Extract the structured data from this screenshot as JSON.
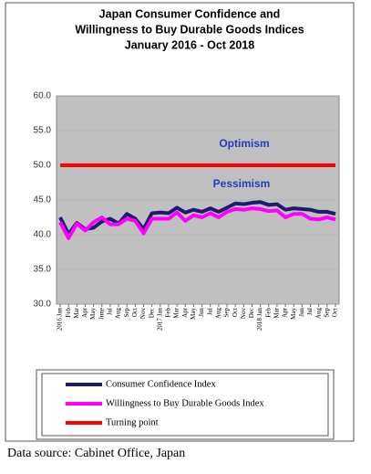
{
  "chart_data": {
    "type": "line",
    "title": [
      "Japan Consumer Confidence and",
      "Willingness to Buy Durable Goods Indices",
      "January 2016 - Oct 2018"
    ],
    "categories": [
      "2016 Jan",
      "Feb",
      "Mar",
      "Apr",
      "May",
      "June",
      "Jul",
      "Aug",
      "Sep",
      "Oct",
      "Nov",
      "Dec",
      "2017 Jan",
      "Feb",
      "Mar",
      "Apr",
      "May",
      "Jun",
      "Jul",
      "Aug",
      "Sep",
      "Oct",
      "Nov",
      "Dec",
      "2018 Jan",
      "Feb",
      "Mar",
      "Apr",
      "May",
      "Jun",
      "Jul",
      "Aug",
      "Sep",
      "Oct"
    ],
    "series": [
      {
        "name": "Consumer Confidence Index",
        "color": "#1c1c6e",
        "values": [
          42.5,
          40.1,
          41.7,
          40.8,
          41.0,
          41.9,
          42.3,
          41.6,
          43.0,
          42.3,
          40.8,
          43.1,
          43.2,
          43.1,
          43.9,
          43.2,
          43.6,
          43.3,
          43.8,
          43.3,
          43.9,
          44.5,
          44.4,
          44.6,
          44.7,
          44.3,
          44.4,
          43.6,
          43.8,
          43.7,
          43.6,
          43.3,
          43.3,
          43.0
        ]
      },
      {
        "name": "Willingness to Buy Durable Goods Index",
        "color": "#ff00ff",
        "values": [
          41.8,
          39.5,
          41.6,
          40.6,
          41.8,
          42.5,
          41.5,
          41.5,
          42.3,
          42.0,
          40.2,
          42.3,
          42.3,
          42.3,
          43.2,
          42.0,
          42.8,
          42.5,
          43.1,
          42.5,
          43.3,
          43.7,
          43.6,
          43.8,
          43.7,
          43.4,
          43.5,
          42.5,
          43.0,
          43.0,
          42.3,
          42.2,
          42.5,
          42.2
        ]
      },
      {
        "name": "Turning point",
        "color": "#ff0000",
        "values": [
          50,
          50,
          50,
          50,
          50,
          50,
          50,
          50,
          50,
          50,
          50,
          50,
          50,
          50,
          50,
          50,
          50,
          50,
          50,
          50,
          50,
          50,
          50,
          50,
          50,
          50,
          50,
          50,
          50,
          50,
          50,
          50,
          50,
          50
        ]
      }
    ],
    "ylim": [
      30,
      60
    ],
    "yticks": [
      {
        "value": 30,
        "label": "30.0"
      },
      {
        "value": 35,
        "label": "35.0"
      },
      {
        "value": 40,
        "label": "40.0"
      },
      {
        "value": 45,
        "label": "45.0"
      },
      {
        "value": 50,
        "label": "50.0"
      },
      {
        "value": 55,
        "label": "55.0"
      },
      {
        "value": 60,
        "label": "60.0"
      }
    ],
    "grid": true,
    "annotations": [
      "Optimism",
      "Pessimism"
    ],
    "source": "Data source: Cabinet Office, Japan"
  }
}
